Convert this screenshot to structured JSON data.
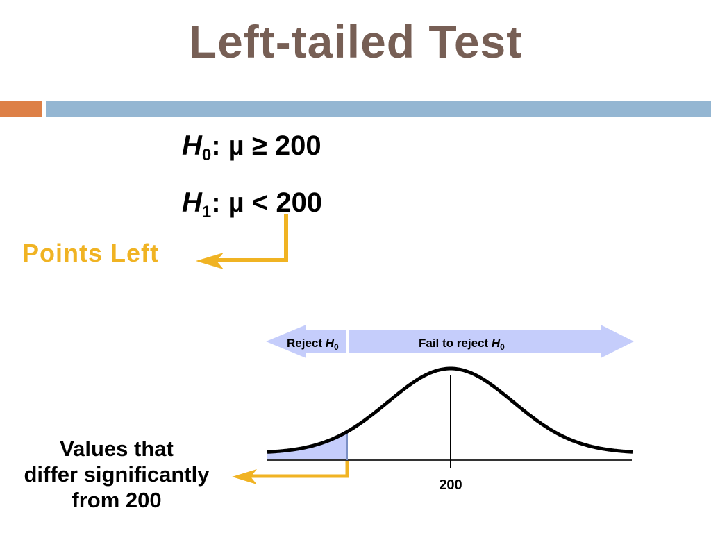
{
  "title": "Left-tailed Test",
  "hypotheses": {
    "h0": {
      "symbol": "H",
      "subscript": "0",
      "relation": ": µ ≥ 200"
    },
    "h1": {
      "symbol": "H",
      "subscript": "1",
      "relation": ": µ < 200"
    }
  },
  "callouts": {
    "points_left": "Points Left",
    "values_note": [
      "Values that",
      "differ significantly",
      "from 200"
    ]
  },
  "diagram": {
    "reject_label": "Reject ",
    "fail_label": "Fail to reject ",
    "h_symbol": "H",
    "h_subscript": "0",
    "center_value": "200"
  },
  "colors": {
    "title": "#775f55",
    "accent_orange": "#dd8047",
    "accent_blue": "#94b6d2",
    "callout": "#f0b323",
    "region_fill": "#c5cdfb"
  }
}
